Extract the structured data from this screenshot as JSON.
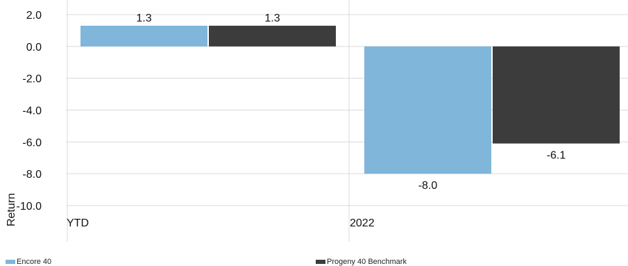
{
  "chart_data": {
    "type": "bar",
    "categories": [
      "YTD",
      "2022"
    ],
    "series": [
      {
        "name": "Encore 40",
        "values": [
          1.3,
          -8.0
        ],
        "color": "#7fb6d9"
      },
      {
        "name": "Progeny 40 Benchmark",
        "values": [
          1.3,
          -6.1
        ],
        "color": "#3c3c3c"
      }
    ],
    "data_labels": [
      [
        "1.3",
        "-8.0"
      ],
      [
        "1.3",
        "-6.1"
      ]
    ],
    "yticks": [
      "2.0",
      "0.0",
      "-2.0",
      "-4.0",
      "-6.0",
      "-8.0",
      "-10.0"
    ],
    "ylim": [
      -10,
      2
    ],
    "ylabel": "Return",
    "xlabel": "",
    "grid": true,
    "legend_position": "bottom"
  }
}
